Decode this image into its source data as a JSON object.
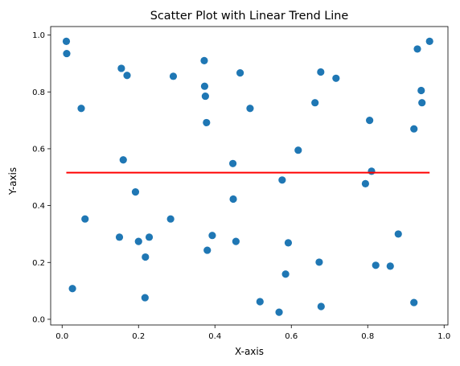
{
  "chart_data": {
    "type": "scatter",
    "title": "Scatter Plot with Linear Trend Line",
    "xlabel": "X-axis",
    "ylabel": "Y-axis",
    "xlim": [
      -0.03,
      1.01
    ],
    "ylim": [
      -0.02,
      1.03
    ],
    "xticks": [
      0.0,
      0.2,
      0.4,
      0.6,
      0.8,
      1.0
    ],
    "xtick_labels": [
      "0.0",
      "0.2",
      "0.4",
      "0.6",
      "0.8",
      "1.0"
    ],
    "yticks": [
      0.0,
      0.2,
      0.4,
      0.6,
      0.8,
      1.0
    ],
    "ytick_labels": [
      "0.0",
      "0.2",
      "0.4",
      "0.6",
      "0.8",
      "1.0"
    ],
    "grid": false,
    "colors": {
      "points": "#1f77b4",
      "trend": "#ff0000"
    },
    "series": [
      {
        "kind": "points",
        "x": [
          0.011,
          0.012,
          0.027,
          0.05,
          0.06,
          0.15,
          0.155,
          0.16,
          0.17,
          0.192,
          0.2,
          0.217,
          0.218,
          0.228,
          0.284,
          0.291,
          0.372,
          0.373,
          0.375,
          0.378,
          0.38,
          0.393,
          0.447,
          0.448,
          0.455,
          0.466,
          0.492,
          0.518,
          0.568,
          0.576,
          0.585,
          0.592,
          0.618,
          0.662,
          0.673,
          0.677,
          0.678,
          0.717,
          0.794,
          0.805,
          0.81,
          0.821,
          0.859,
          0.88,
          0.921,
          0.921,
          0.93,
          0.94,
          0.942,
          0.962
        ],
        "y": [
          0.978,
          0.935,
          0.108,
          0.742,
          0.353,
          0.289,
          0.883,
          0.561,
          0.858,
          0.448,
          0.274,
          0.076,
          0.219,
          0.289,
          0.353,
          0.855,
          0.91,
          0.82,
          0.785,
          0.692,
          0.243,
          0.295,
          0.548,
          0.423,
          0.274,
          0.867,
          0.742,
          0.062,
          0.025,
          0.49,
          0.159,
          0.269,
          0.595,
          0.762,
          0.201,
          0.87,
          0.045,
          0.848,
          0.477,
          0.7,
          0.521,
          0.19,
          0.187,
          0.3,
          0.059,
          0.67,
          0.951,
          0.805,
          0.762,
          0.978
        ]
      },
      {
        "kind": "line",
        "x": [
          0.011,
          0.962
        ],
        "y": [
          0.516,
          0.516
        ]
      }
    ]
  }
}
